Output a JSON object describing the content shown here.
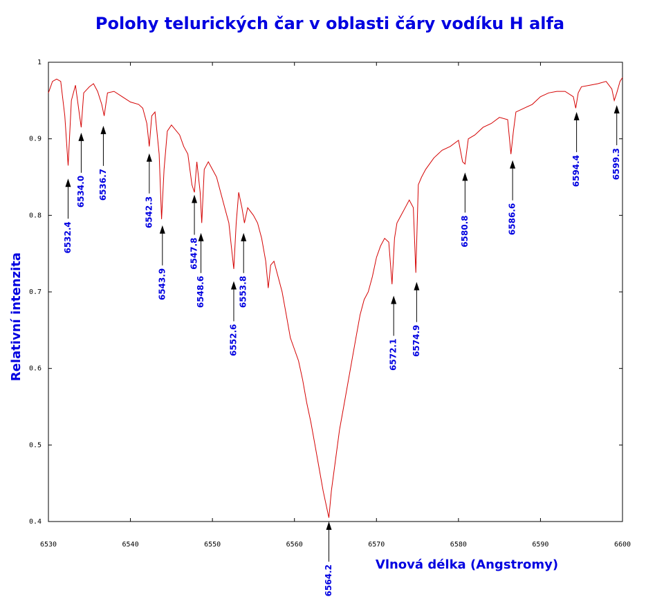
{
  "chart_data": {
    "type": "line",
    "title": "Polohy telurických čar v oblasti čáry vodíku H alfa",
    "x_label": "Vlnová délka (Angstromy)",
    "y_label": "Relativní intenzita",
    "xlim": [
      6530,
      6600
    ],
    "xticks": [
      6530,
      6540,
      6550,
      6560,
      6570,
      6580,
      6590,
      6600
    ],
    "ylim": [
      0.4,
      1
    ],
    "yticks": [
      0.4,
      0.5,
      0.6,
      0.7,
      0.8,
      0.9,
      1
    ],
    "series": [
      {
        "color": "#d40000",
        "x": [
          6530,
          6530.5,
          6531,
          6531.5,
          6532,
          6532.4,
          6532.8,
          6533.3,
          6533.8,
          6534.0,
          6534.3,
          6535,
          6535.5,
          6536,
          6536.5,
          6536.8,
          6537.2,
          6538,
          6539,
          6540,
          6541,
          6541.5,
          6542,
          6542.3,
          6542.6,
          6543,
          6543.5,
          6543.8,
          6544.1,
          6544.5,
          6545,
          6546,
          6546.5,
          6547,
          6547.5,
          6547.8,
          6548.1,
          6548.5,
          6548.7,
          6549,
          6549.5,
          6550,
          6550.5,
          6551,
          6551.5,
          6552,
          6552.3,
          6552.6,
          6552.9,
          6553.2,
          6553.6,
          6553.9,
          6554.3,
          6555,
          6555.5,
          6556,
          6556.5,
          6556.8,
          6557.1,
          6557.5,
          6558,
          6558.5,
          6559,
          6559.5,
          6560,
          6560.5,
          6561,
          6561.5,
          6562,
          6562.5,
          6563,
          6563.5,
          6564,
          6564.2,
          6564.5,
          6565,
          6565.5,
          6566,
          6566.5,
          6567,
          6567.5,
          6568,
          6568.5,
          6569,
          6569.5,
          6570,
          6570.5,
          6571,
          6571.5,
          6571.9,
          6572.2,
          6572.5,
          6573,
          6573.5,
          6574,
          6574.5,
          6574.8,
          6575.1,
          6575.5,
          6576,
          6577,
          6578,
          6579,
          6580,
          6580.5,
          6580.8,
          6581.2,
          6582,
          6583,
          6584,
          6585,
          6586,
          6586.4,
          6586.7,
          6587,
          6588,
          6589,
          6590,
          6591,
          6592,
          6593,
          6594,
          6594.3,
          6594.6,
          6595,
          6596,
          6597,
          6598,
          6598.7,
          6599,
          6599.3,
          6599.7,
          6600
        ],
        "values": [
          0.96,
          0.975,
          0.978,
          0.975,
          0.93,
          0.865,
          0.95,
          0.97,
          0.93,
          0.915,
          0.96,
          0.968,
          0.972,
          0.962,
          0.945,
          0.93,
          0.96,
          0.962,
          0.955,
          0.948,
          0.945,
          0.94,
          0.92,
          0.89,
          0.93,
          0.935,
          0.88,
          0.795,
          0.86,
          0.91,
          0.918,
          0.905,
          0.89,
          0.88,
          0.84,
          0.83,
          0.87,
          0.83,
          0.79,
          0.86,
          0.87,
          0.86,
          0.85,
          0.83,
          0.81,
          0.79,
          0.76,
          0.73,
          0.79,
          0.83,
          0.81,
          0.79,
          0.81,
          0.8,
          0.79,
          0.77,
          0.74,
          0.705,
          0.735,
          0.74,
          0.72,
          0.7,
          0.67,
          0.64,
          0.625,
          0.61,
          0.585,
          0.555,
          0.53,
          0.5,
          0.47,
          0.44,
          0.415,
          0.405,
          0.44,
          0.48,
          0.52,
          0.55,
          0.58,
          0.61,
          0.64,
          0.67,
          0.69,
          0.7,
          0.72,
          0.745,
          0.76,
          0.77,
          0.765,
          0.71,
          0.77,
          0.79,
          0.8,
          0.81,
          0.82,
          0.81,
          0.725,
          0.84,
          0.85,
          0.86,
          0.875,
          0.885,
          0.89,
          0.898,
          0.87,
          0.867,
          0.9,
          0.905,
          0.915,
          0.92,
          0.928,
          0.925,
          0.88,
          0.91,
          0.935,
          0.94,
          0.945,
          0.955,
          0.96,
          0.962,
          0.962,
          0.955,
          0.94,
          0.96,
          0.968,
          0.97,
          0.972,
          0.975,
          0.965,
          0.95,
          0.96,
          0.975,
          0.98
        ]
      }
    ],
    "annotations": [
      {
        "label": "6532.4",
        "x": 6532.4,
        "y": 0.848
      },
      {
        "label": "6534.0",
        "x": 6534.0,
        "y": 0.908
      },
      {
        "label": "6536.7",
        "x": 6536.7,
        "y": 0.917
      },
      {
        "label": "6542.3",
        "x": 6542.3,
        "y": 0.881
      },
      {
        "label": "6543.9",
        "x": 6543.9,
        "y": 0.787
      },
      {
        "label": "6547.8",
        "x": 6547.8,
        "y": 0.827
      },
      {
        "label": "6548.6",
        "x": 6548.6,
        "y": 0.777
      },
      {
        "label": "6552.6",
        "x": 6552.6,
        "y": 0.714
      },
      {
        "label": "6553.8",
        "x": 6553.8,
        "y": 0.777
      },
      {
        "label": "6564.2",
        "x": 6564.2,
        "y": 0.4
      },
      {
        "label": "6572.1",
        "x": 6572.1,
        "y": 0.695
      },
      {
        "label": "6574.9",
        "x": 6574.9,
        "y": 0.713
      },
      {
        "label": "6580.8",
        "x": 6580.8,
        "y": 0.856
      },
      {
        "label": "6586.6",
        "x": 6586.6,
        "y": 0.872
      },
      {
        "label": "6594.4",
        "x": 6594.4,
        "y": 0.935
      },
      {
        "label": "6599.3",
        "x": 6599.3,
        "y": 0.944
      }
    ]
  }
}
